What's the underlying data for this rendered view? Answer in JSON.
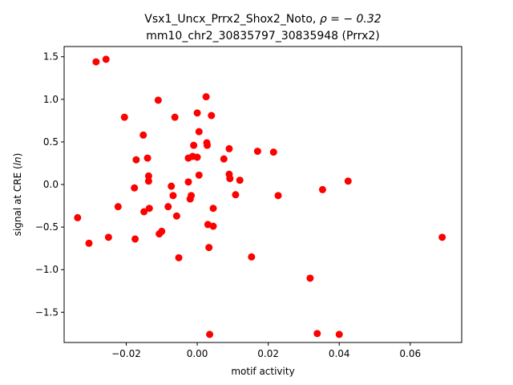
{
  "chart_data": {
    "type": "scatter",
    "title_line1": "Vsx1_Uncx_Prrx2_Shox2_Noto, ",
    "title_rho": "ρ = − 0.32",
    "title_line2": "mm10_chr2_30835797_30835948 (Prrx2)",
    "xlabel": "motif activity",
    "ylabel_prefix": "signal at CRE (",
    "ylabel_italic": "ln",
    "ylabel_suffix": ")",
    "xlim": [
      -0.0375,
      0.0745
    ],
    "ylim": [
      -1.855,
      1.62
    ],
    "xticks": [
      -0.02,
      0.0,
      0.02,
      0.04,
      0.06
    ],
    "xtick_labels": [
      "−0.02",
      "0.00",
      "0.02",
      "0.04",
      "0.06"
    ],
    "yticks": [
      -1.5,
      -1.0,
      -0.5,
      0.0,
      0.5,
      1.0,
      1.5
    ],
    "ytick_labels": [
      "−1.5",
      "−1.0",
      "−0.5",
      "0.0",
      "0.5",
      "1.0",
      "1.5"
    ],
    "marker_color": "#ff0000",
    "grid": false,
    "points": [
      {
        "x": -0.0285,
        "y": 1.44
      },
      {
        "x": -0.0257,
        "y": 1.47
      },
      {
        "x": -0.0337,
        "y": -0.39
      },
      {
        "x": -0.0305,
        "y": -0.69
      },
      {
        "x": -0.025,
        "y": -0.62
      },
      {
        "x": -0.0223,
        "y": -0.26
      },
      {
        "x": -0.0205,
        "y": 0.79
      },
      {
        "x": -0.0177,
        "y": -0.04
      },
      {
        "x": -0.0172,
        "y": 0.29
      },
      {
        "x": -0.0175,
        "y": -0.64
      },
      {
        "x": -0.0152,
        "y": 0.58
      },
      {
        "x": -0.015,
        "y": -0.32
      },
      {
        "x": -0.014,
        "y": 0.31
      },
      {
        "x": -0.0137,
        "y": 0.1
      },
      {
        "x": -0.0137,
        "y": 0.04
      },
      {
        "x": -0.0135,
        "y": -0.28
      },
      {
        "x": -0.011,
        "y": 0.99
      },
      {
        "x": -0.0107,
        "y": -0.58
      },
      {
        "x": -0.01,
        "y": -0.55
      },
      {
        "x": -0.0082,
        "y": -0.26
      },
      {
        "x": -0.0073,
        "y": -0.02
      },
      {
        "x": -0.0068,
        "y": -0.13
      },
      {
        "x": -0.0063,
        "y": 0.79
      },
      {
        "x": -0.0058,
        "y": -0.37
      },
      {
        "x": -0.0052,
        "y": -0.86
      },
      {
        "x": -0.0025,
        "y": 0.31
      },
      {
        "x": -0.0025,
        "y": 0.03
      },
      {
        "x": -0.002,
        "y": -0.17
      },
      {
        "x": -0.0017,
        "y": -0.13
      },
      {
        "x": -0.0013,
        "y": 0.33
      },
      {
        "x": -0.001,
        "y": 0.46
      },
      {
        "x": 0.0,
        "y": 0.32
      },
      {
        "x": 0.0,
        "y": 0.84
      },
      {
        "x": 0.0005,
        "y": 0.62
      },
      {
        "x": 0.0005,
        "y": 0.11
      },
      {
        "x": 0.0025,
        "y": 1.03
      },
      {
        "x": 0.0027,
        "y": 0.49
      },
      {
        "x": 0.0028,
        "y": 0.46
      },
      {
        "x": 0.003,
        "y": -0.47
      },
      {
        "x": 0.0033,
        "y": -0.74
      },
      {
        "x": 0.0035,
        "y": -1.76
      },
      {
        "x": 0.004,
        "y": 0.81
      },
      {
        "x": 0.0045,
        "y": -0.28
      },
      {
        "x": 0.0045,
        "y": -0.49
      },
      {
        "x": 0.0075,
        "y": 0.3
      },
      {
        "x": 0.009,
        "y": 0.42
      },
      {
        "x": 0.009,
        "y": 0.12
      },
      {
        "x": 0.0092,
        "y": 0.07
      },
      {
        "x": 0.0108,
        "y": -0.12
      },
      {
        "x": 0.012,
        "y": 0.05
      },
      {
        "x": 0.0153,
        "y": -0.85
      },
      {
        "x": 0.017,
        "y": 0.39
      },
      {
        "x": 0.0215,
        "y": 0.38
      },
      {
        "x": 0.0228,
        "y": -0.13
      },
      {
        "x": 0.0318,
        "y": -1.1
      },
      {
        "x": 0.0338,
        "y": -1.75
      },
      {
        "x": 0.0353,
        "y": -0.06
      },
      {
        "x": 0.04,
        "y": -1.76
      },
      {
        "x": 0.0425,
        "y": 0.04
      },
      {
        "x": 0.069,
        "y": -0.62
      }
    ]
  }
}
